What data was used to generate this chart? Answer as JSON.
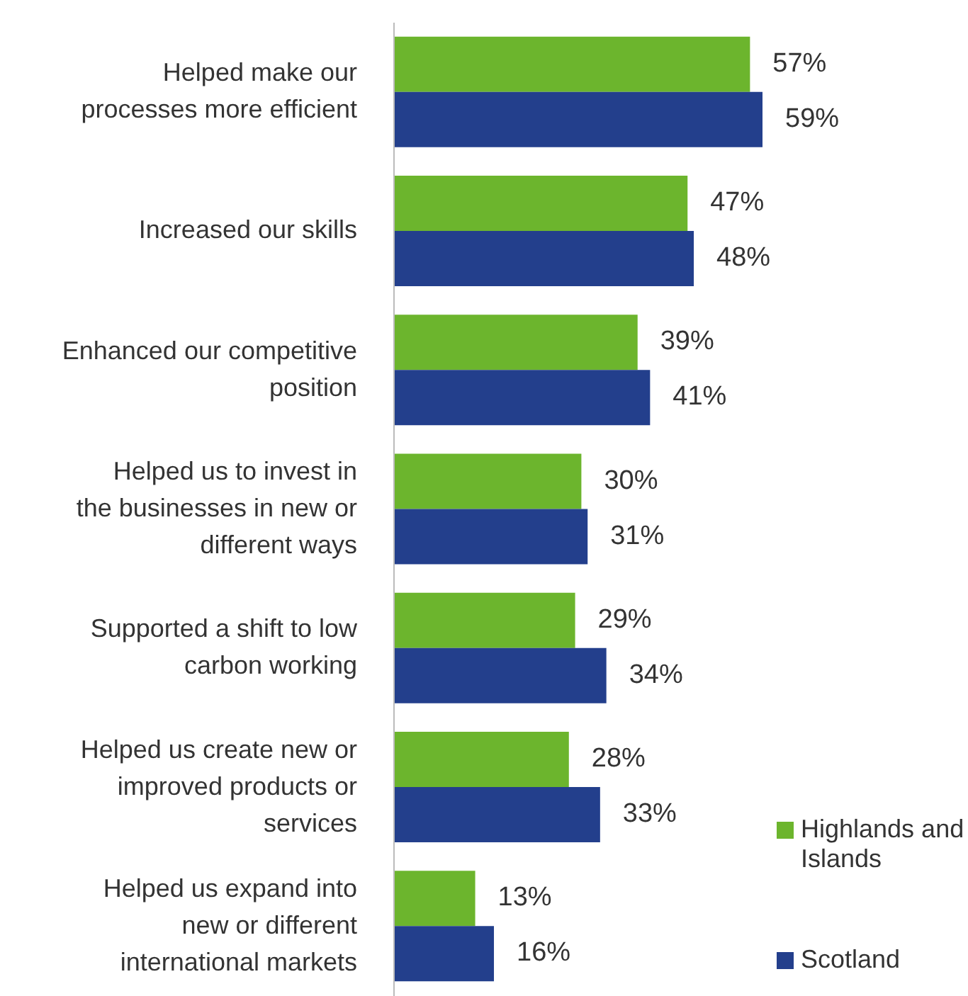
{
  "chart_data": {
    "type": "bar",
    "orientation": "horizontal",
    "categories": [
      "Helped make our processes more efficient",
      "Increased our skills",
      "Enhanced our competitive position",
      "Helped us to invest in the businesses in new or different ways",
      "Supported a shift to low carbon working",
      "Helped us create new or improved products or services",
      "Helped us expand into new or different international markets"
    ],
    "series": [
      {
        "name": "Highlands and Islands",
        "color": "#6cb52d",
        "values": [
          57,
          47,
          39,
          30,
          29,
          28,
          13
        ],
        "value_labels": [
          "57%",
          "47%",
          "39%",
          "30%",
          "29%",
          "28%",
          "13%"
        ]
      },
      {
        "name": "Scotland",
        "color": "#233f8c",
        "values": [
          59,
          48,
          41,
          31,
          34,
          33,
          16
        ],
        "value_labels": [
          "59%",
          "48%",
          "41%",
          "31%",
          "34%",
          "33%",
          "16%"
        ]
      }
    ],
    "legend": "bottom right",
    "grid": false
  }
}
